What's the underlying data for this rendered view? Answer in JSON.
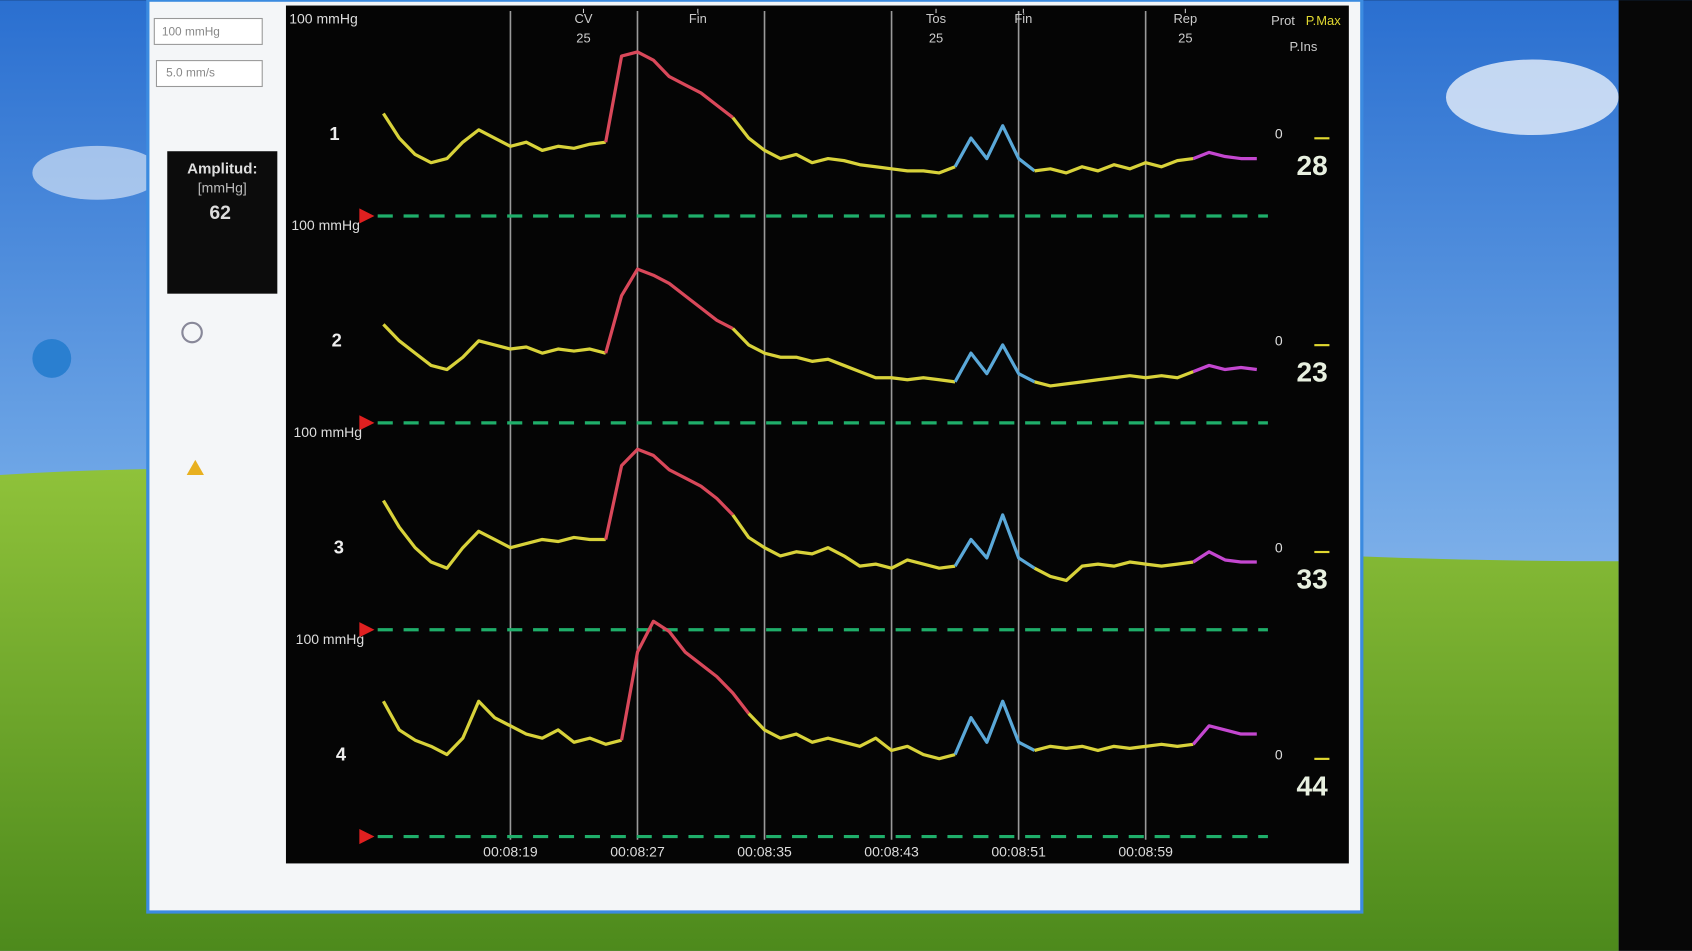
{
  "toolbar": {
    "scale": "100 mmHg",
    "speed": "5.0 mm/s"
  },
  "amplitude_box": {
    "title": "Amplitud:",
    "unit": "[mmHg]",
    "value": "62"
  },
  "chart_data": {
    "type": "line",
    "legend": [
      "Prot",
      "P.Max",
      "P.Ins"
    ],
    "events": [
      {
        "label": "CV",
        "count": "25",
        "x": 503.6
      },
      {
        "label": "Fin",
        "x": 510.8
      },
      {
        "label": "Tos",
        "count": "25",
        "x": 525.8
      },
      {
        "label": "Fin",
        "x": 531.3
      },
      {
        "label": "Rep",
        "count": "25",
        "x": 541.5
      }
    ],
    "xlim": [
      490.3,
      546.7
    ],
    "xticks": [
      {
        "value": 499,
        "label": "00:08:19"
      },
      {
        "value": 507,
        "label": "00:08:27"
      },
      {
        "value": 515,
        "label": "00:08:35"
      },
      {
        "value": 523,
        "label": "00:08:43"
      },
      {
        "value": 531,
        "label": "00:08:51"
      },
      {
        "value": 539,
        "label": "00:08:59"
      }
    ],
    "grid": true,
    "channels": [
      {
        "label": "1",
        "scale_label": "100 mmHg",
        "zero_label": "0",
        "amplitude": 28,
        "ylim": [
          0,
          100
        ],
        "series": [
          {
            "color": "#d8d23a",
            "x": [
              491,
              492,
              493,
              494,
              495,
              496,
              497,
              498,
              499,
              500,
              501,
              502,
              503,
              504,
              505
            ],
            "values": [
              50,
              38,
              30,
              26,
              28,
              36,
              42,
              38,
              34,
              36,
              32,
              34,
              33,
              35,
              36
            ]
          },
          {
            "color": "#d9485a",
            "x": [
              505,
              506,
              507,
              508,
              509,
              510,
              511,
              512,
              513
            ],
            "values": [
              36,
              78,
              80,
              76,
              68,
              64,
              60,
              54,
              48
            ]
          },
          {
            "color": "#d8d23a",
            "x": [
              513,
              514,
              515,
              516,
              517,
              518,
              519,
              520,
              521,
              522,
              523,
              524,
              525,
              526,
              527
            ],
            "values": [
              48,
              38,
              32,
              28,
              30,
              26,
              28,
              27,
              25,
              24,
              23,
              22,
              22,
              21,
              24
            ]
          },
          {
            "color": "#5aa8d8",
            "x": [
              527,
              528,
              529,
              530,
              531,
              532
            ],
            "values": [
              24,
              38,
              28,
              44,
              28,
              22
            ]
          },
          {
            "color": "#d8d23a",
            "x": [
              532,
              533,
              534,
              535,
              536,
              537,
              538,
              539,
              540,
              541,
              542
            ],
            "values": [
              22,
              23,
              21,
              24,
              22,
              25,
              23,
              26,
              24,
              27,
              28
            ]
          },
          {
            "color": "#c447d0",
            "x": [
              542,
              543,
              544,
              545,
              546
            ],
            "values": [
              28,
              31,
              29,
              28,
              28
            ]
          }
        ]
      },
      {
        "label": "2",
        "scale_label": "100 mmHg",
        "zero_label": "0",
        "amplitude": 23,
        "ylim": [
          0,
          100
        ],
        "series": [
          {
            "color": "#d8d23a",
            "x": [
              491,
              492,
              493,
              494,
              495,
              496,
              497,
              498,
              499,
              500,
              501,
              502,
              503,
              504,
              505
            ],
            "values": [
              48,
              40,
              34,
              28,
              26,
              32,
              40,
              38,
              36,
              37,
              34,
              36,
              35,
              36,
              34
            ]
          },
          {
            "color": "#d9485a",
            "x": [
              505,
              506,
              507,
              508,
              509,
              510,
              511,
              512,
              513
            ],
            "values": [
              34,
              62,
              75,
              72,
              68,
              62,
              56,
              50,
              46
            ]
          },
          {
            "color": "#d8d23a",
            "x": [
              513,
              514,
              515,
              516,
              517,
              518,
              519,
              520,
              521,
              522,
              523,
              524,
              525,
              526,
              527
            ],
            "values": [
              46,
              38,
              34,
              32,
              32,
              30,
              31,
              28,
              25,
              22,
              22,
              21,
              22,
              21,
              20
            ]
          },
          {
            "color": "#5aa8d8",
            "x": [
              527,
              528,
              529,
              530,
              531,
              532
            ],
            "values": [
              20,
              34,
              24,
              38,
              24,
              20
            ]
          },
          {
            "color": "#d8d23a",
            "x": [
              532,
              533,
              534,
              535,
              536,
              537,
              538,
              539,
              540,
              541,
              542
            ],
            "values": [
              20,
              18,
              19,
              20,
              21,
              22,
              23,
              22,
              23,
              22,
              25
            ]
          },
          {
            "color": "#c447d0",
            "x": [
              542,
              543,
              544,
              545,
              546
            ],
            "values": [
              25,
              28,
              26,
              27,
              26
            ]
          }
        ]
      },
      {
        "label": "3",
        "scale_label": "100 mmHg",
        "zero_label": "0",
        "amplitude": 33,
        "ylim": [
          0,
          100
        ],
        "series": [
          {
            "color": "#d8d23a",
            "x": [
              491,
              492,
              493,
              494,
              495,
              496,
              497,
              498,
              499,
              500,
              501,
              502,
              503,
              504,
              505
            ],
            "values": [
              63,
              50,
              40,
              33,
              30,
              40,
              48,
              44,
              40,
              42,
              44,
              43,
              45,
              44,
              44
            ]
          },
          {
            "color": "#d9485a",
            "x": [
              505,
              506,
              507,
              508,
              509,
              510,
              511,
              512,
              513
            ],
            "values": [
              44,
              80,
              88,
              85,
              78,
              74,
              70,
              64,
              56
            ]
          },
          {
            "color": "#d8d23a",
            "x": [
              513,
              514,
              515,
              516,
              517,
              518,
              519,
              520,
              521,
              522,
              523,
              524,
              525,
              526,
              527
            ],
            "values": [
              56,
              45,
              40,
              36,
              38,
              37,
              40,
              36,
              31,
              32,
              30,
              34,
              32,
              30,
              31
            ]
          },
          {
            "color": "#5aa8d8",
            "x": [
              527,
              528,
              529,
              530,
              531,
              532
            ],
            "values": [
              31,
              44,
              35,
              56,
              35,
              30
            ]
          },
          {
            "color": "#d8d23a",
            "x": [
              532,
              533,
              534,
              535,
              536,
              537,
              538,
              539,
              540,
              541,
              542
            ],
            "values": [
              30,
              26,
              24,
              31,
              32,
              31,
              33,
              32,
              31,
              32,
              33
            ]
          },
          {
            "color": "#c447d0",
            "x": [
              542,
              543,
              544,
              545,
              546
            ],
            "values": [
              33,
              38,
              34,
              33,
              33
            ]
          }
        ]
      },
      {
        "label": "4",
        "scale_label": "100 mmHg",
        "zero_label": "0",
        "amplitude": 44,
        "ylim": [
          0,
          100
        ],
        "series": [
          {
            "color": "#d8d23a",
            "x": [
              491,
              492,
              493,
              494,
              495,
              496,
              497,
              498,
              499,
              500,
              501,
              502,
              503,
              504,
              505,
              506
            ],
            "values": [
              66,
              52,
              47,
              44,
              40,
              48,
              66,
              58,
              54,
              50,
              48,
              52,
              46,
              48,
              45,
              47
            ]
          },
          {
            "color": "#d9485a",
            "x": [
              506,
              507,
              508,
              509,
              510,
              511,
              512,
              513,
              514
            ],
            "values": [
              47,
              90,
              105,
              100,
              90,
              84,
              78,
              70,
              60
            ]
          },
          {
            "color": "#d8d23a",
            "x": [
              514,
              515,
              516,
              517,
              518,
              519,
              520,
              521,
              522,
              523,
              524,
              525,
              526,
              527
            ],
            "values": [
              60,
              52,
              48,
              50,
              46,
              48,
              46,
              44,
              48,
              42,
              44,
              40,
              38,
              40
            ]
          },
          {
            "color": "#5aa8d8",
            "x": [
              527,
              528,
              529,
              530,
              531,
              532
            ],
            "values": [
              40,
              58,
              46,
              66,
              46,
              42
            ]
          },
          {
            "color": "#d8d23a",
            "x": [
              532,
              533,
              534,
              535,
              536,
              537,
              538,
              539,
              540,
              541,
              542
            ],
            "values": [
              42,
              44,
              43,
              44,
              42,
              44,
              43,
              44,
              45,
              44,
              45
            ]
          },
          {
            "color": "#c447d0",
            "x": [
              542,
              543,
              544,
              545,
              546
            ],
            "values": [
              45,
              54,
              52,
              50,
              50
            ]
          }
        ]
      }
    ]
  }
}
